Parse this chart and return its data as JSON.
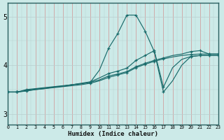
{
  "xlabel": "Humidex (Indice chaleur)",
  "bg_color": "#cceae8",
  "line_color": "#1a6b6b",
  "xlim": [
    0,
    23
  ],
  "ylim": [
    2.78,
    5.28
  ],
  "yticks": [
    3,
    4,
    5
  ],
  "xticks": [
    0,
    1,
    2,
    3,
    4,
    5,
    6,
    7,
    8,
    9,
    10,
    11,
    12,
    13,
    14,
    15,
    16,
    17,
    18,
    19,
    20,
    21,
    22,
    23
  ],
  "lines": [
    [
      3.45,
      3.45,
      3.5,
      3.52,
      3.54,
      3.56,
      3.58,
      3.6,
      3.62,
      3.65,
      3.9,
      4.35,
      4.65,
      5.03,
      5.03,
      4.7,
      4.28,
      3.45,
      3.68,
      4.0,
      4.18,
      4.2,
      4.2,
      4.2
    ],
    [
      3.45,
      3.45,
      3.48,
      3.5,
      3.52,
      3.54,
      3.56,
      3.58,
      3.6,
      3.63,
      3.68,
      3.75,
      3.8,
      3.85,
      3.95,
      4.02,
      4.08,
      4.13,
      4.17,
      4.2,
      4.22,
      4.23,
      4.23,
      4.23
    ],
    [
      3.45,
      3.45,
      3.48,
      3.51,
      3.53,
      3.55,
      3.57,
      3.6,
      3.62,
      3.65,
      3.7,
      3.78,
      3.82,
      3.87,
      3.97,
      4.04,
      4.1,
      4.15,
      4.2,
      4.23,
      4.28,
      4.3,
      4.23,
      4.23
    ],
    [
      3.45,
      3.45,
      3.47,
      3.5,
      3.52,
      3.55,
      3.57,
      3.6,
      3.63,
      3.66,
      3.74,
      3.83,
      3.88,
      3.94,
      4.1,
      4.2,
      4.3,
      3.55,
      3.95,
      4.12,
      4.18,
      4.2,
      4.2,
      4.2
    ]
  ],
  "markers_at": {
    "line0": [
      0,
      1,
      2,
      9,
      11,
      12,
      13,
      14,
      15,
      16,
      17,
      22,
      23
    ],
    "line1": [
      0,
      5,
      7,
      9,
      13,
      17,
      21,
      22,
      23
    ],
    "line2": [
      0,
      5,
      7,
      9,
      13,
      17,
      21,
      22,
      23
    ],
    "line3": [
      0,
      5,
      7,
      9,
      13,
      14,
      16,
      17,
      18,
      21,
      22,
      23
    ]
  }
}
